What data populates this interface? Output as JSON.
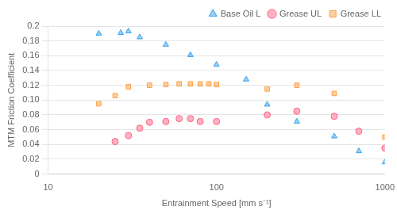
{
  "chart_data": {
    "type": "scatter",
    "x_label": "Entrainment Speed [mm s⁻¹]",
    "y_label": "MTM Friction Coefficient",
    "series": [
      {
        "name": "Base Oil L",
        "marker": "triangle",
        "x": [
          20,
          27,
          30,
          35,
          50,
          70,
          100,
          150,
          200,
          300,
          500,
          700,
          1000
        ],
        "values": [
          0.19,
          0.191,
          0.193,
          0.185,
          0.175,
          0.161,
          0.148,
          0.128,
          0.094,
          0.071,
          0.051,
          0.031,
          0.016
        ]
      },
      {
        "name": "Grease UL",
        "marker": "circle",
        "x": [
          25,
          30,
          35,
          40,
          50,
          60,
          70,
          80,
          100,
          200,
          300,
          500,
          700,
          1000
        ],
        "values": [
          0.044,
          0.052,
          0.062,
          0.07,
          0.071,
          0.075,
          0.075,
          0.071,
          0.071,
          0.08,
          0.085,
          0.078,
          0.058,
          0.035
        ]
      },
      {
        "name": "Grease LL",
        "marker": "square",
        "x": [
          20,
          25,
          30,
          40,
          50,
          60,
          70,
          80,
          90,
          100,
          200,
          300,
          500,
          1000
        ],
        "values": [
          0.095,
          0.106,
          0.118,
          0.12,
          0.121,
          0.122,
          0.122,
          0.122,
          0.122,
          0.121,
          0.115,
          0.12,
          0.109,
          0.05
        ]
      }
    ],
    "log": "x",
    "xlim": [
      10,
      1000
    ],
    "xticks": [
      10,
      100,
      1000
    ],
    "ylim": [
      0,
      0.2
    ],
    "yticks": [
      0,
      0.02,
      0.04,
      0.06,
      0.08,
      {
        "value": 0.1,
        "label": "0.10"
      },
      0.12,
      0.14,
      0.16,
      0.18,
      0.2
    ],
    "grid": "y",
    "legend": "upper right"
  }
}
